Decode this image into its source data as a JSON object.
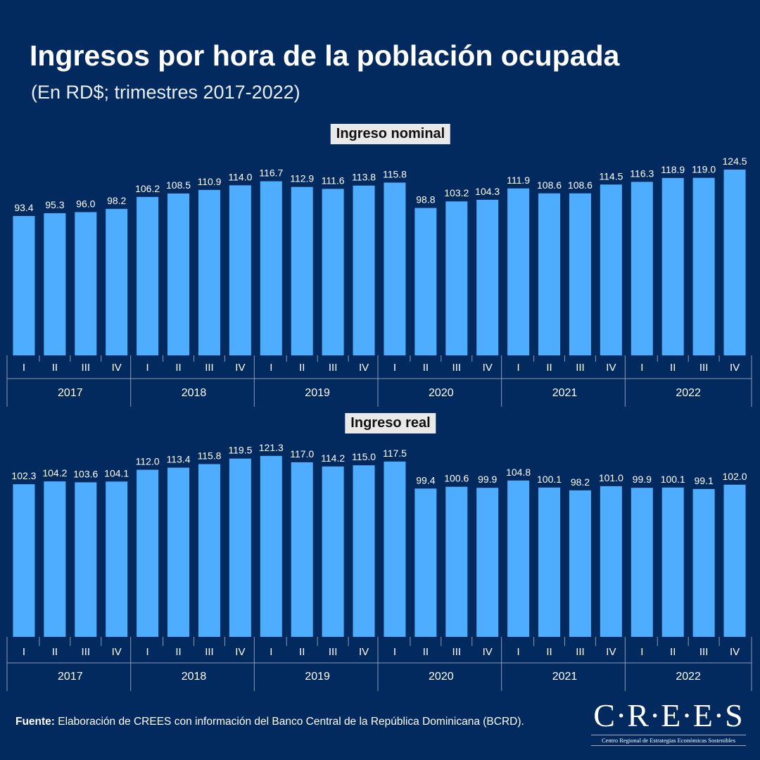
{
  "title": "Ingresos por hora de la población ocupada",
  "subtitle": "(En RD$; trimestres 2017-2022)",
  "colors": {
    "background": "#032a5e",
    "bar": "#4fadff",
    "text": "#ffffff"
  },
  "chart_data": [
    {
      "type": "bar",
      "title": "Ingreso nominal",
      "categories": [
        "I",
        "II",
        "III",
        "IV",
        "I",
        "II",
        "III",
        "IV",
        "I",
        "II",
        "III",
        "IV",
        "I",
        "II",
        "III",
        "IV",
        "I",
        "II",
        "III",
        "IV",
        "I",
        "II",
        "III",
        "IV"
      ],
      "groups": [
        "2017",
        "2018",
        "2019",
        "2020",
        "2021",
        "2022"
      ],
      "values": [
        93.4,
        95.3,
        96.0,
        98.2,
        106.2,
        108.5,
        110.9,
        114.0,
        116.7,
        112.9,
        111.6,
        113.8,
        115.8,
        98.8,
        103.2,
        104.3,
        111.9,
        108.6,
        108.6,
        114.5,
        116.3,
        118.9,
        119.0,
        124.5
      ],
      "ylim": [
        0,
        130
      ],
      "grid": false
    },
    {
      "type": "bar",
      "title": "Ingreso real",
      "categories": [
        "I",
        "II",
        "III",
        "IV",
        "I",
        "II",
        "III",
        "IV",
        "I",
        "II",
        "III",
        "IV",
        "I",
        "II",
        "III",
        "IV",
        "I",
        "II",
        "III",
        "IV",
        "I",
        "II",
        "III",
        "IV"
      ],
      "groups": [
        "2017",
        "2018",
        "2019",
        "2020",
        "2021",
        "2022"
      ],
      "values": [
        102.3,
        104.2,
        103.6,
        104.1,
        112.0,
        113.4,
        115.8,
        119.5,
        121.3,
        117.0,
        114.2,
        115.0,
        117.5,
        99.4,
        100.6,
        99.9,
        104.8,
        100.1,
        98.2,
        101.0,
        99.9,
        100.1,
        99.1,
        102.0
      ],
      "ylim": [
        0,
        130
      ],
      "grid": false
    }
  ],
  "source": {
    "label": "Fuente:",
    "text": " Elaboración de CREES con información del Banco Central de la República Dominicana (BCRD)."
  },
  "logo": {
    "name": "C·R·E·E·S",
    "tagline": "Centro Regional de Estrategias Económicas Sostenibles"
  }
}
